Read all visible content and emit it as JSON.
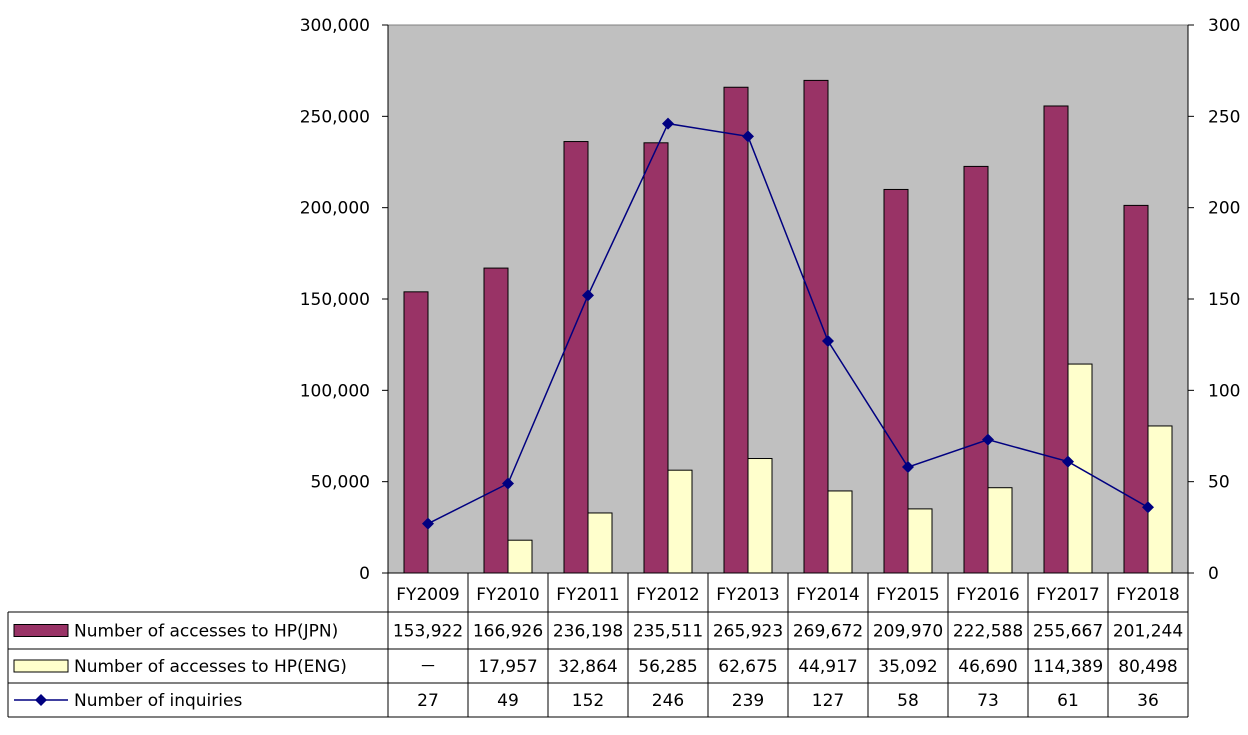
{
  "chart_data": {
    "type": "bar",
    "categories": [
      "FY2009",
      "FY2010",
      "FY2011",
      "FY2012",
      "FY2013",
      "FY2014",
      "FY2015",
      "FY2016",
      "FY2017",
      "FY2018"
    ],
    "series": [
      {
        "name": "Number of accesses to HP(JPN)",
        "kind": "bar",
        "axis": "left",
        "color": "#993366",
        "values": [
          153922,
          166926,
          236198,
          235511,
          265923,
          269672,
          209970,
          222588,
          255667,
          201244
        ],
        "labels": [
          "153,922",
          "166,926",
          "236,198",
          "235,511",
          "265,923",
          "269,672",
          "209,970",
          "222,588",
          "255,667",
          "201,244"
        ]
      },
      {
        "name": "Number of accesses to HP(ENG)",
        "kind": "bar",
        "axis": "left",
        "color": "#ffffcc",
        "values": [
          null,
          17957,
          32864,
          56285,
          62675,
          44917,
          35092,
          46690,
          114389,
          80498
        ],
        "labels": [
          "－",
          "17,957",
          "32,864",
          "56,285",
          "62,675",
          "44,917",
          "35,092",
          "46,690",
          "114,389",
          "80,498"
        ]
      },
      {
        "name": "Number of inquiries",
        "kind": "line",
        "axis": "right",
        "color": "#000080",
        "marker": "diamond",
        "values": [
          27,
          49,
          152,
          246,
          239,
          127,
          58,
          73,
          61,
          36
        ],
        "labels": [
          "27",
          "49",
          "152",
          "246",
          "239",
          "127",
          "58",
          "73",
          "61",
          "36"
        ]
      }
    ],
    "y_left": {
      "ylim": [
        0,
        300000
      ],
      "ticks": [
        0,
        50000,
        100000,
        150000,
        200000,
        250000,
        300000
      ],
      "tick_labels": [
        "0",
        "50,000",
        "100,000",
        "150,000",
        "200,000",
        "250,000",
        "300,000"
      ]
    },
    "y_right": {
      "ylim": [
        0,
        300
      ],
      "ticks": [
        0,
        50,
        100,
        150,
        200,
        250,
        300
      ],
      "tick_labels": [
        "0",
        "50",
        "100",
        "150",
        "200",
        "250",
        "300"
      ]
    },
    "grid": false,
    "plot_background": "#c0c0c0",
    "legend": "data-table"
  }
}
